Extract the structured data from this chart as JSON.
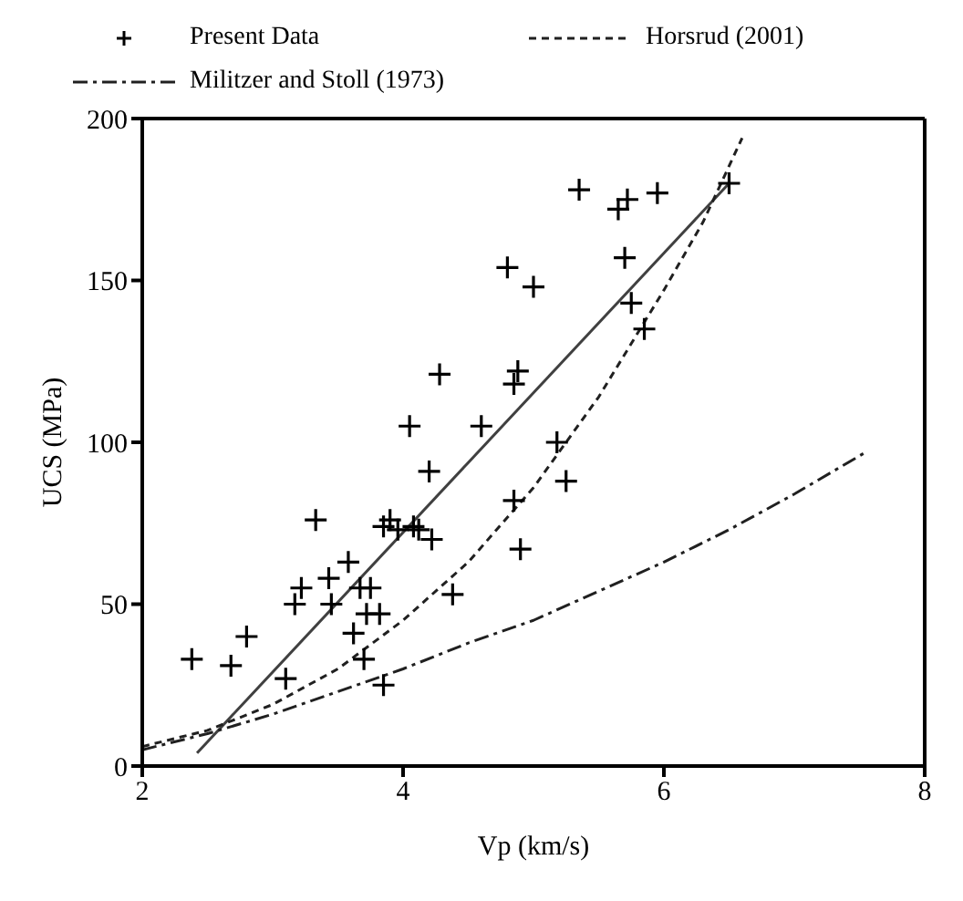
{
  "chart_data": {
    "type": "scatter",
    "xlabel": "Vp (km/s)",
    "ylabel": "UCS (MPa)",
    "xlim": [
      2,
      8
    ],
    "xticks": [
      2,
      4,
      6,
      8
    ],
    "ylim": [
      0,
      200
    ],
    "yticks": [
      0,
      50,
      100,
      150,
      200
    ],
    "grid": false,
    "legend": "top",
    "series": [
      {
        "name": "Present Data",
        "marker": "cross",
        "color": "#000000",
        "x": [
          2.38,
          2.68,
          2.8,
          3.1,
          3.17,
          3.22,
          3.33,
          3.43,
          3.45,
          3.58,
          3.62,
          3.67,
          3.7,
          3.72,
          3.75,
          3.82,
          3.85,
          3.85,
          3.9,
          3.96,
          4.05,
          4.08,
          4.12,
          4.2,
          4.22,
          4.28,
          4.38,
          4.6,
          4.8,
          4.85,
          4.85,
          4.88,
          4.9,
          5.0,
          5.18,
          5.25,
          5.35,
          5.65,
          5.7,
          5.72,
          5.75,
          5.85,
          5.95,
          6.5
        ],
        "values": [
          33,
          31,
          40,
          27,
          50,
          55,
          76,
          58,
          50,
          63,
          41,
          55,
          33,
          47,
          55,
          47,
          25,
          74,
          76,
          73,
          105,
          74,
          73,
          91,
          70,
          121,
          53,
          105,
          154,
          82,
          118,
          122,
          67,
          148,
          100,
          88,
          178,
          172,
          157,
          175,
          143,
          135,
          177,
          180
        ]
      },
      {
        "type": "line",
        "line_style": "solid",
        "color": "#404040",
        "x": [
          2.42,
          6.5
        ],
        "values": [
          4,
          180
        ]
      },
      {
        "name": "Horsrud (2001)",
        "type": "line",
        "line_style": "dashed",
        "color": "#202020",
        "x": [
          2,
          2.5,
          3,
          3.5,
          4,
          4.5,
          5,
          5.5,
          6,
          6.3,
          6.6
        ],
        "values": [
          6,
          11,
          19,
          30,
          45,
          63,
          86,
          114,
          147,
          168,
          194
        ]
      },
      {
        "name": "Militzer and Stoll (1973)",
        "type": "line",
        "line_style": "dashdot",
        "color": "#202020",
        "x": [
          2,
          2.5,
          3,
          3.5,
          4,
          4.5,
          5,
          5.5,
          6,
          6.5,
          7,
          7.55
        ],
        "values": [
          5,
          10,
          16,
          23,
          30,
          38,
          45,
          54,
          63,
          73,
          84,
          97
        ]
      }
    ]
  }
}
